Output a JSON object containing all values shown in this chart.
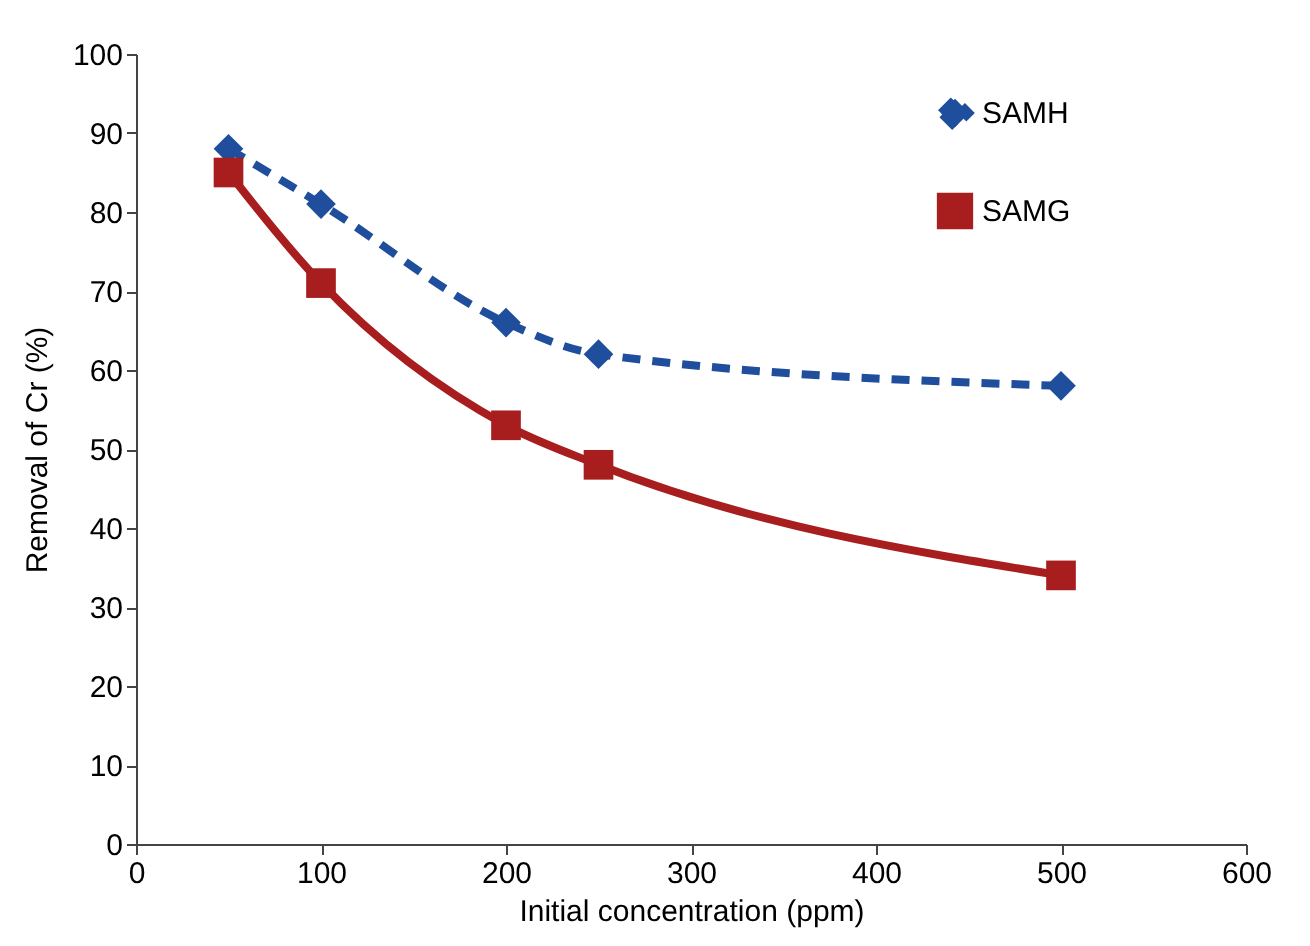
{
  "chart_data": {
    "type": "line",
    "xlabel": "Initial concentration (ppm)",
    "ylabel": "Removal of Cr (%)",
    "xlim": [
      0,
      600
    ],
    "xticks": [
      0,
      100,
      200,
      300,
      400,
      500,
      600
    ],
    "ylim": [
      0,
      100
    ],
    "yticks": [
      0,
      10,
      20,
      30,
      40,
      50,
      60,
      70,
      80,
      90,
      100
    ],
    "grid": false,
    "legend": "top right",
    "x": [
      50,
      100,
      200,
      250,
      500
    ],
    "series": [
      {
        "name": "SAMH",
        "color": "#1f4e9c",
        "values": [
          88,
          81,
          66,
          62,
          58
        ],
        "marker": "diamond",
        "line_style": "dashed"
      },
      {
        "name": "SAMG",
        "color": "#a81e1e",
        "values": [
          85,
          71,
          53,
          48,
          34
        ],
        "marker": "square",
        "line_style": "solid"
      }
    ]
  }
}
